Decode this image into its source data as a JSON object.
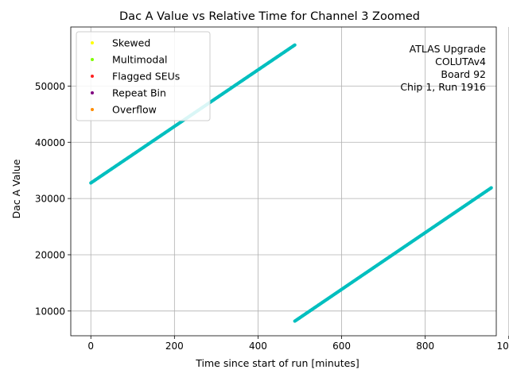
{
  "chart_data": {
    "type": "scatter",
    "title": "Dac A Value vs Relative Time for Channel 3 Zoomed",
    "xlabel": "Time since start of run [minutes]",
    "ylabel": "Dac A Value",
    "xlim": [
      -48,
      970
    ],
    "ylim": [
      5600,
      60500
    ],
    "xticks": [
      0,
      200,
      400,
      600,
      800,
      1000
    ],
    "yticks": [
      10000,
      20000,
      30000,
      40000,
      50000
    ],
    "grid": true,
    "legend_position": "top-left",
    "legend": [
      {
        "label": "Skewed",
        "color": "#ffff00"
      },
      {
        "label": "Multimodal",
        "color": "#7fff00"
      },
      {
        "label": "Flagged SEUs",
        "color": "#ff2020"
      },
      {
        "label": "Repeat Bin",
        "color": "#800080"
      },
      {
        "label": "Overflow",
        "color": "#ff8c00"
      }
    ],
    "annotation": [
      "ATLAS Upgrade",
      "COLUTAv4",
      "Board 92",
      "Chip 1, Run 1916"
    ],
    "series": [
      {
        "color": "#00bfbf",
        "segments": [
          {
            "x_start": 0,
            "y_start": 32768,
            "x_end": 488,
            "y_end": 57300
          },
          {
            "x_start": 488,
            "y_start": 8200,
            "x_end": 958,
            "y_end": 31900
          }
        ]
      }
    ]
  }
}
